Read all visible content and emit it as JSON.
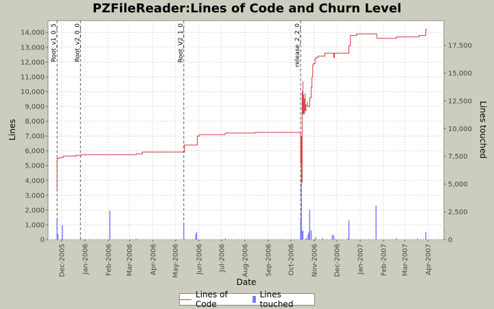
{
  "chart_data": {
    "type": "line",
    "title": "PZFileReader:Lines of Code and Churn Level",
    "xlabel": "Date",
    "ylabel_left": "Lines",
    "ylabel_right": "Lines touched",
    "xlim": [
      "2005-11-13",
      "2007-04-22"
    ],
    "ylim_left": [
      0,
      14800
    ],
    "ylim_right": [
      0,
      19731
    ],
    "yticks_left": [
      "0",
      "1,000",
      "2,000",
      "3,000",
      "4,000",
      "5,000",
      "6,000",
      "7,000",
      "8,000",
      "9,000",
      "10,000",
      "11,000",
      "12,000",
      "13,000",
      "14,000"
    ],
    "yticks_right": [
      "0",
      "2,500",
      "5,000",
      "7,500",
      "10,000",
      "12,500",
      "15,000",
      "17,500"
    ],
    "xticks": [
      {
        "date": "2005-12-01",
        "label": "Dec-2005"
      },
      {
        "date": "2006-01-01",
        "label": "Jan-2006"
      },
      {
        "date": "2006-02-01",
        "label": "Feb-2006"
      },
      {
        "date": "2006-03-01",
        "label": "Mar-2006"
      },
      {
        "date": "2006-04-01",
        "label": "Apr-2006"
      },
      {
        "date": "2006-05-01",
        "label": "May-2006"
      },
      {
        "date": "2006-06-01",
        "label": "Jun-2006"
      },
      {
        "date": "2006-07-01",
        "label": "Jul-2006"
      },
      {
        "date": "2006-08-01",
        "label": "Aug-2006"
      },
      {
        "date": "2006-09-01",
        "label": "Sep-2006"
      },
      {
        "date": "2006-10-01",
        "label": "Oct-2006"
      },
      {
        "date": "2006-11-01",
        "label": "Nov-2006"
      },
      {
        "date": "2006-12-01",
        "label": "Dec-2006"
      },
      {
        "date": "2007-01-01",
        "label": "Jan-2007"
      },
      {
        "date": "2007-02-01",
        "label": "Feb-2007"
      },
      {
        "date": "2007-03-01",
        "label": "Mar-2007"
      },
      {
        "date": "2007-04-01",
        "label": "Apr-2007"
      }
    ],
    "markers": [
      {
        "date": "2005-11-25",
        "label": "Root_v1_0_5"
      },
      {
        "date": "2005-12-26",
        "label": "Root_v2_0_0"
      },
      {
        "date": "2006-05-12",
        "label": "Root_V2_1_0"
      },
      {
        "date": "2006-10-14",
        "label": "release_2_2_0"
      }
    ],
    "grid": true,
    "legend_position": "bottom",
    "series": [
      {
        "name": "Lines of Code",
        "axis": "left",
        "color": "#d2373d",
        "style": "step",
        "points": [
          [
            "2005-11-25",
            3350
          ],
          [
            "2005-11-25",
            5500
          ],
          [
            "2005-11-28",
            5550
          ],
          [
            "2005-12-03",
            5650
          ],
          [
            "2005-12-20",
            5700
          ],
          [
            "2005-12-27",
            5740
          ],
          [
            "2006-03-10",
            5800
          ],
          [
            "2006-03-18",
            5920
          ],
          [
            "2006-05-12",
            5920
          ],
          [
            "2006-05-13",
            6400
          ],
          [
            "2006-05-28",
            6400
          ],
          [
            "2006-05-30",
            7000
          ],
          [
            "2006-06-02",
            7100
          ],
          [
            "2006-07-06",
            7100
          ],
          [
            "2006-07-06",
            7200
          ],
          [
            "2006-08-10",
            7200
          ],
          [
            "2006-08-15",
            7250
          ],
          [
            "2006-10-14",
            7250
          ],
          [
            "2006-10-14",
            5150
          ],
          [
            "2006-10-15",
            7000
          ],
          [
            "2006-10-15",
            3900
          ],
          [
            "2006-10-16",
            10000
          ],
          [
            "2006-10-16",
            8500
          ],
          [
            "2006-10-17",
            10700
          ],
          [
            "2006-10-17",
            9100
          ],
          [
            "2006-10-18",
            9800
          ],
          [
            "2006-10-18",
            8500
          ],
          [
            "2006-10-19",
            9500
          ],
          [
            "2006-10-20",
            9900
          ],
          [
            "2006-10-20",
            8700
          ],
          [
            "2006-10-21",
            9100
          ],
          [
            "2006-10-23",
            9300
          ],
          [
            "2006-10-23",
            9000
          ],
          [
            "2006-10-26",
            9000
          ],
          [
            "2006-10-26",
            9600
          ],
          [
            "2006-10-28",
            9600
          ],
          [
            "2006-10-28",
            10300
          ],
          [
            "2006-10-29",
            11000
          ],
          [
            "2006-10-30",
            11800
          ],
          [
            "2006-10-31",
            11900
          ],
          [
            "2006-11-01",
            11900
          ],
          [
            "2006-11-02",
            12200
          ],
          [
            "2006-11-03",
            12300
          ],
          [
            "2006-11-06",
            12400
          ],
          [
            "2006-11-15",
            12600
          ],
          [
            "2006-11-27",
            12600
          ],
          [
            "2006-11-27",
            12300
          ],
          [
            "2006-11-28",
            12600
          ],
          [
            "2006-12-16",
            12600
          ],
          [
            "2006-12-17",
            13100
          ],
          [
            "2006-12-19",
            13800
          ],
          [
            "2006-12-27",
            13900
          ],
          [
            "2007-01-22",
            13900
          ],
          [
            "2007-01-23",
            13600
          ],
          [
            "2007-02-16",
            13600
          ],
          [
            "2007-02-18",
            13700
          ],
          [
            "2007-03-18",
            13700
          ],
          [
            "2007-03-20",
            13800
          ],
          [
            "2007-03-28",
            13800
          ],
          [
            "2007-03-29",
            14200
          ],
          [
            "2007-03-30",
            14250
          ]
        ]
      },
      {
        "name": "Lines touched",
        "axis": "right",
        "color": "#7b7bff",
        "style": "bar",
        "points": [
          [
            "2005-11-25",
            1900
          ],
          [
            "2005-11-26",
            500
          ],
          [
            "2005-12-02",
            1300
          ],
          [
            "2006-02-03",
            2600
          ],
          [
            "2006-03-10",
            80
          ],
          [
            "2006-05-12",
            1550
          ],
          [
            "2006-05-28",
            500
          ],
          [
            "2006-05-29",
            700
          ],
          [
            "2006-07-06",
            120
          ],
          [
            "2006-10-14",
            2000
          ],
          [
            "2006-10-15",
            5400
          ],
          [
            "2006-10-16",
            800
          ],
          [
            "2006-10-17",
            800
          ],
          [
            "2006-10-22",
            150
          ],
          [
            "2006-10-24",
            500
          ],
          [
            "2006-10-25",
            700
          ],
          [
            "2006-10-26",
            2700
          ],
          [
            "2006-10-28",
            850
          ],
          [
            "2006-11-03",
            200
          ],
          [
            "2006-11-12",
            150
          ],
          [
            "2006-11-25",
            450
          ],
          [
            "2006-11-27",
            400
          ],
          [
            "2006-12-16",
            150
          ],
          [
            "2006-12-17",
            1750
          ],
          [
            "2007-01-22",
            3050
          ],
          [
            "2007-02-18",
            120
          ],
          [
            "2007-03-18",
            100
          ],
          [
            "2007-03-29",
            700
          ]
        ]
      }
    ]
  }
}
